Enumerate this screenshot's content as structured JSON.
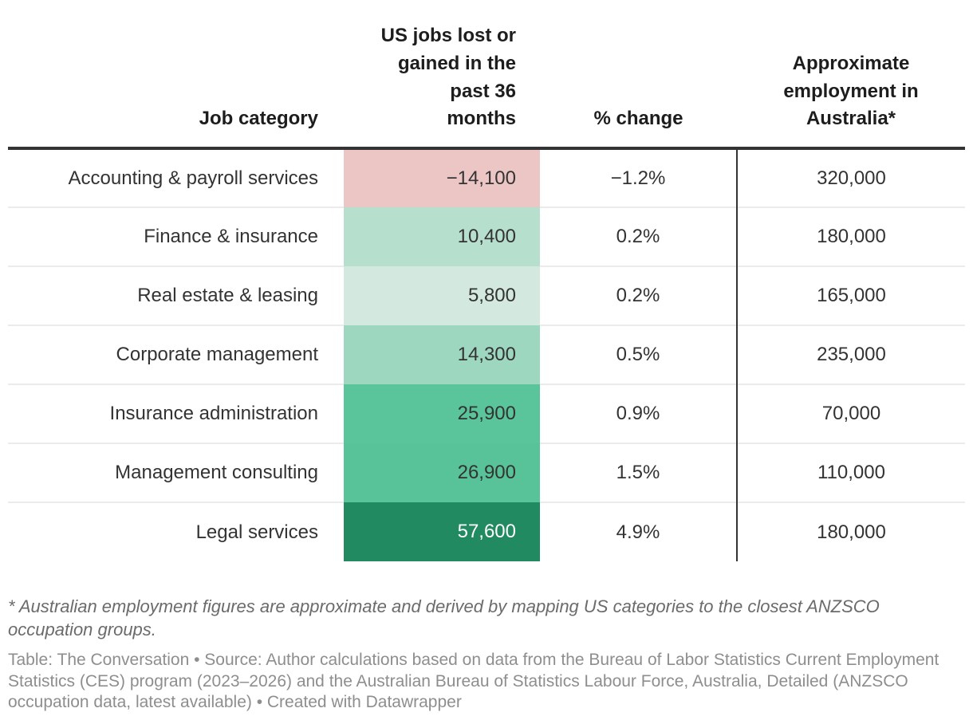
{
  "chart_data": {
    "type": "table",
    "columns": [
      "Job category",
      "US jobs lost or gained in the past 36 months",
      "% change",
      "Approximate employment in Australia*"
    ],
    "rows": [
      {
        "category": "Accounting & payroll services",
        "us_jobs": -14100,
        "us_jobs_label": "−14,100",
        "pct_change": -1.2,
        "pct_change_label": "−1.2%",
        "aus_employment": 320000,
        "aus_employment_label": "320,000",
        "cell_bg": "#ebc6c5",
        "cell_fg": "#333333"
      },
      {
        "category": "Finance & insurance",
        "us_jobs": 10400,
        "us_jobs_label": "10,400",
        "pct_change": 0.2,
        "pct_change_label": "0.2%",
        "aus_employment": 180000,
        "aus_employment_label": "180,000",
        "cell_bg": "#b7dfcd",
        "cell_fg": "#333333"
      },
      {
        "category": "Real estate & leasing",
        "us_jobs": 5800,
        "us_jobs_label": "5,800",
        "pct_change": 0.2,
        "pct_change_label": "0.2%",
        "aus_employment": 165000,
        "aus_employment_label": "165,000",
        "cell_bg": "#d3e8de",
        "cell_fg": "#333333"
      },
      {
        "category": "Corporate management",
        "us_jobs": 14300,
        "us_jobs_label": "14,300",
        "pct_change": 0.5,
        "pct_change_label": "0.5%",
        "aus_employment": 235000,
        "aus_employment_label": "235,000",
        "cell_bg": "#9ed7bf",
        "cell_fg": "#333333"
      },
      {
        "category": "Insurance administration",
        "us_jobs": 25900,
        "us_jobs_label": "25,900",
        "pct_change": 0.9,
        "pct_change_label": "0.9%",
        "aus_employment": 70000,
        "aus_employment_label": "70,000",
        "cell_bg": "#5ac49a",
        "cell_fg": "#333333"
      },
      {
        "category": "Management consulting",
        "us_jobs": 26900,
        "us_jobs_label": "26,900",
        "pct_change": 1.5,
        "pct_change_label": "1.5%",
        "aus_employment": 110000,
        "aus_employment_label": "110,000",
        "cell_bg": "#58c399",
        "cell_fg": "#333333"
      },
      {
        "category": "Legal services",
        "us_jobs": 57600,
        "us_jobs_label": "57,600",
        "pct_change": 4.9,
        "pct_change_label": "4.9%",
        "aus_employment": 180000,
        "aus_employment_label": "180,000",
        "cell_bg": "#218a60",
        "cell_fg": "#ffffff"
      }
    ],
    "layout": {
      "color_scale_column": "us_jobs",
      "negative_color": "#ebc6c5",
      "positive_color_max": "#218a60",
      "header_rule_color": "#333333",
      "column_divider_color": "#333333",
      "row_divider_color": "#ebebeb"
    }
  },
  "footnote": "* Australian employment figures are approximate and derived by mapping US categories to the closest ANZSCO occupation groups.",
  "source": "Table: The Conversation • Source: Author calculations based on data from the Bureau of Labor Statistics Current Employment Statistics (CES) program (2023–2026) and the Australian Bureau of Statistics Labour Force, Australia, Detailed (ANZSCO occupation data, latest available) • Created with Datawrapper"
}
